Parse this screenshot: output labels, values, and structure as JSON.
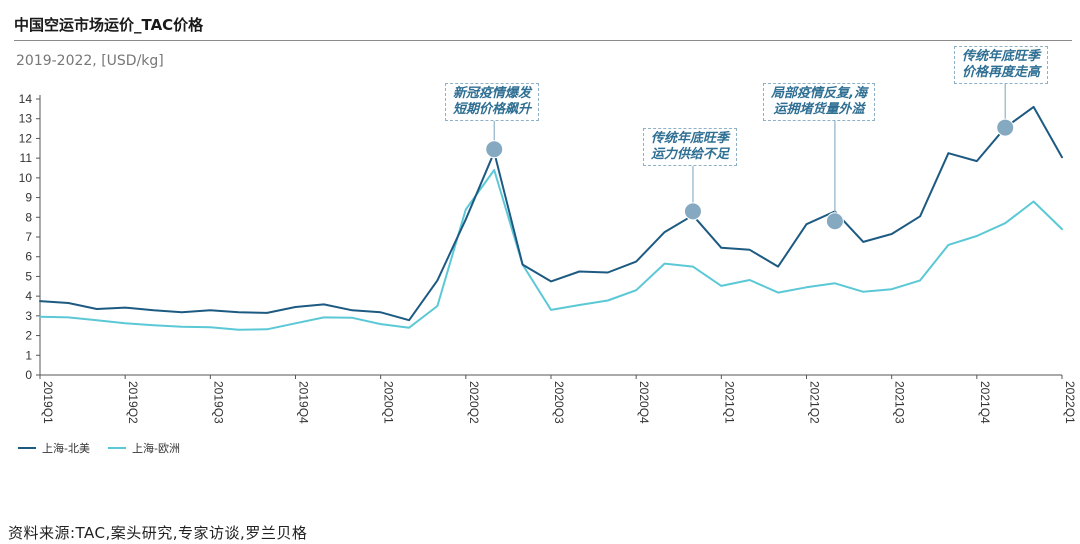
{
  "title": "中国空运市场运价_TAC价格",
  "subtitle": "2019-2022, [USD/kg]",
  "source": "资料来源:TAC,案头研究,专家访谈,罗兰贝格",
  "chart_data": {
    "type": "line",
    "ylim": [
      0,
      14
    ],
    "yticks": [
      0,
      1,
      2,
      3,
      4,
      5,
      6,
      7,
      8,
      9,
      10,
      11,
      12,
      13,
      14
    ],
    "x_tick_labels": [
      "2019Q1",
      "2019Q2",
      "2019Q3",
      "2019Q4",
      "2020Q1",
      "2020Q2",
      "2020Q3",
      "2020Q4",
      "2021Q1",
      "2021Q2",
      "2021Q3",
      "2021Q4",
      "2022Q1"
    ],
    "points_per_quarter": 3,
    "legend_position": "bottom-left",
    "series": [
      {
        "name": "上海-北美",
        "color": "#1d5a82",
        "values": [
          3.75,
          3.65,
          3.35,
          3.42,
          3.28,
          3.18,
          3.28,
          3.18,
          3.15,
          3.45,
          3.58,
          3.28,
          3.18,
          2.78,
          4.8,
          7.9,
          11.3,
          5.6,
          4.75,
          5.25,
          5.2,
          5.75,
          7.25,
          8.1,
          6.45,
          6.35,
          5.5,
          7.65,
          8.3,
          6.75,
          7.15,
          8.05,
          11.25,
          10.85,
          12.55,
          13.6,
          11.05
        ]
      },
      {
        "name": "上海-欧洲",
        "color": "#5bc8d6",
        "values": [
          2.95,
          2.92,
          2.78,
          2.62,
          2.52,
          2.45,
          2.42,
          2.3,
          2.32,
          2.62,
          2.92,
          2.9,
          2.58,
          2.4,
          3.5,
          8.4,
          10.4,
          5.6,
          3.3,
          3.55,
          3.78,
          4.3,
          5.65,
          5.5,
          4.52,
          4.82,
          4.18,
          4.45,
          4.65,
          4.22,
          4.35,
          4.8,
          6.6,
          7.05,
          7.7,
          8.8,
          7.4
        ]
      }
    ],
    "annotations": [
      {
        "lines": [
          "新冠疫情爆发",
          "短期价格飙升"
        ],
        "x_index": 16,
        "y": 11.45
      },
      {
        "lines": [
          "传统年底旺季",
          "运力供给不足"
        ],
        "x_index": 23,
        "y": 8.3
      },
      {
        "lines": [
          "局部疫情反复,海",
          "运拥堵货量外溢"
        ],
        "x_index": 28,
        "y": 7.8
      },
      {
        "lines": [
          "传统年底旺季",
          "价格再度走高"
        ],
        "x_index": 34,
        "y": 12.55
      }
    ]
  }
}
